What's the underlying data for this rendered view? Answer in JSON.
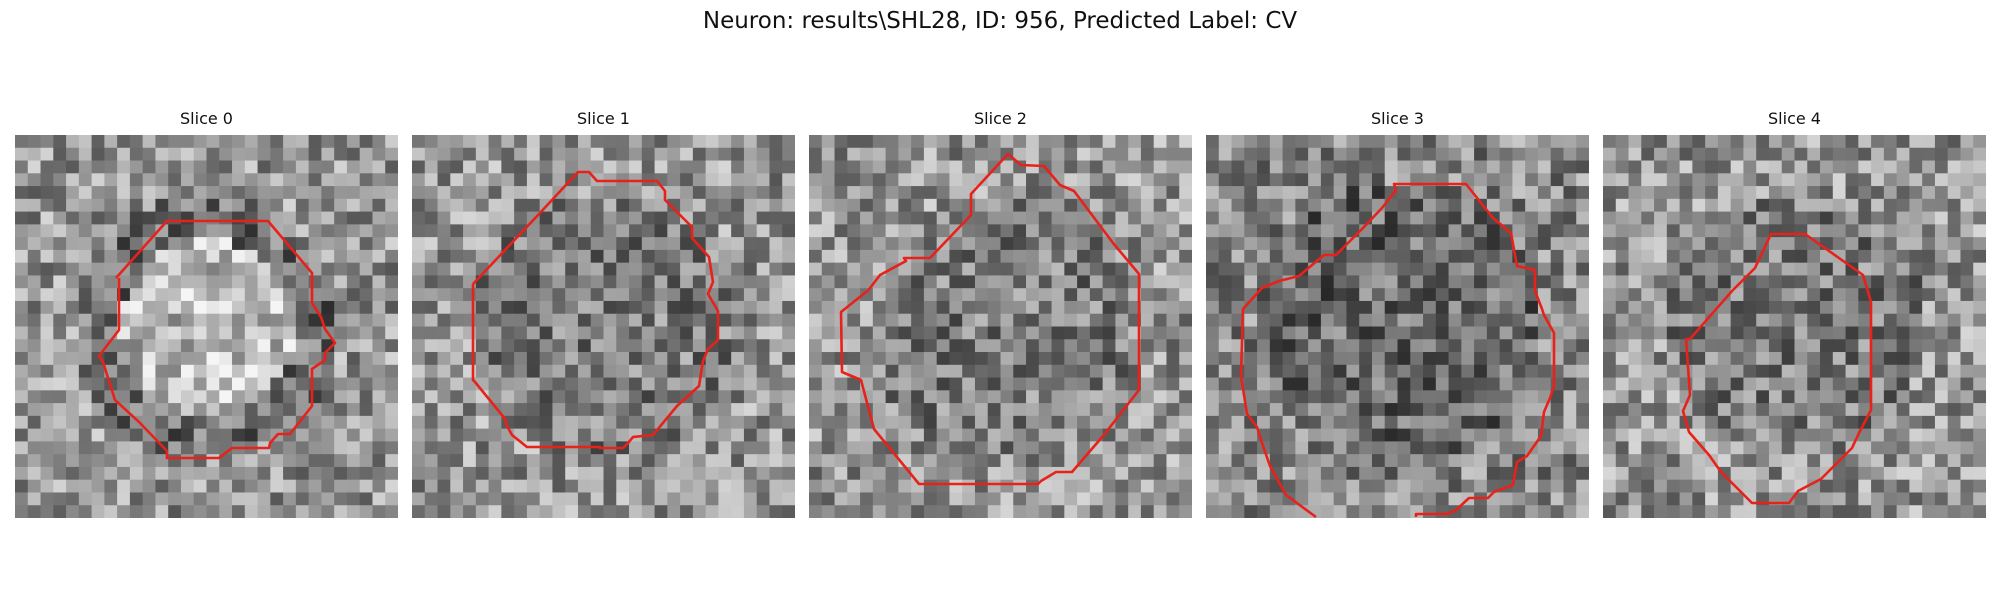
{
  "figure": {
    "title": "Neuron: results\\SHL28, ID: 956, Predicted Label: CV",
    "contour_color": "#e8211b"
  },
  "panels": [
    {
      "title": "Slice 0",
      "seed": 11,
      "center": "bright"
    },
    {
      "title": "Slice 1",
      "seed": 23,
      "center": "mixed"
    },
    {
      "title": "Slice 2",
      "seed": 37,
      "center": "mixed"
    },
    {
      "title": "Slice 3",
      "seed": 51,
      "center": "dark"
    },
    {
      "title": "Slice 4",
      "seed": 67,
      "center": "mixed"
    }
  ]
}
